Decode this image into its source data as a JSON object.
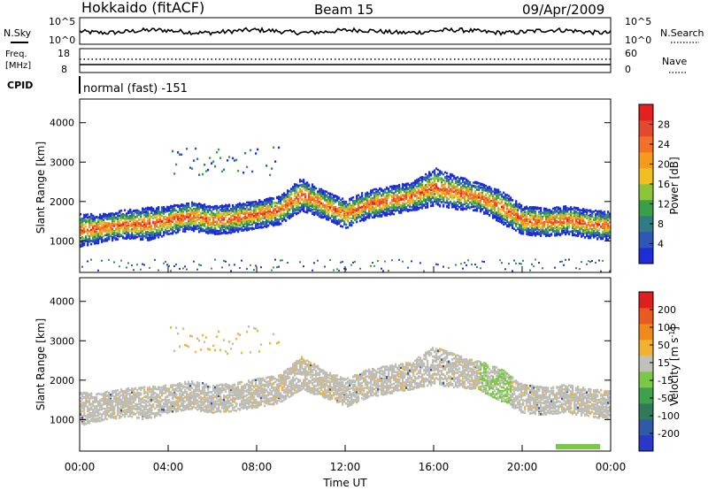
{
  "header": {
    "station": "Hokkaido (fitACF)",
    "beam": "Beam 15",
    "date": "09/Apr/2009"
  },
  "noise_panel": {
    "left_label": "N.Sky",
    "right_label": "N.Search",
    "left_ticks": [
      "10^5",
      "10^0"
    ],
    "right_ticks": [
      "10^5",
      "10^0"
    ]
  },
  "freq_panel": {
    "left_label_1": "Freq.",
    "left_label_2": "[MHz]",
    "right_label": "Nave",
    "left_ticks": [
      "18",
      "8"
    ],
    "right_ticks": [
      "60",
      "0"
    ]
  },
  "cpid_panel": {
    "label": "CPID",
    "text": "normal (fast) -151"
  },
  "colors": {
    "power_scale": [
      "#1f2dd6",
      "#2e57b8",
      "#2f7d82",
      "#3aa048",
      "#8cc43a",
      "#f0c020",
      "#f59a1c",
      "#f2702a",
      "#e4482e",
      "#e6201f"
    ],
    "velocity_scale": [
      "#2b37c8",
      "#2f5aa6",
      "#2f7a59",
      "#3fa14a",
      "#7ac843",
      "#c0c0bb",
      "#f2b231",
      "#ee8a1c",
      "#e85a1f",
      "#df1f1f"
    ],
    "background_scatter": "#bdbdb6"
  },
  "chart_data": [
    {
      "type": "heatmap",
      "name": "power",
      "ylabel": "Slant Range [km]",
      "ylim": [
        200,
        4600
      ],
      "yticks": [
        "1000",
        "2000",
        "3000",
        "4000"
      ],
      "ytick_values": [
        1000,
        2000,
        3000,
        4000
      ],
      "colorbar_label": "Power [dB]",
      "colorbar_ticks": [
        "28",
        "24",
        "20",
        "16",
        "12",
        "8",
        "4"
      ],
      "colorbar_range": [
        0,
        32
      ],
      "echo_band": {
        "time_h": [
          0,
          1,
          2,
          3,
          4,
          5,
          6,
          7,
          8,
          9,
          10,
          11,
          12,
          13,
          14,
          15,
          16,
          17,
          18,
          19,
          20,
          21,
          22,
          23,
          24
        ],
        "center_km": [
          1300,
          1350,
          1450,
          1450,
          1550,
          1650,
          1550,
          1600,
          1700,
          1800,
          2200,
          1950,
          1700,
          1950,
          2050,
          2150,
          2400,
          2250,
          2150,
          1900,
          1550,
          1500,
          1550,
          1450,
          1400
        ],
        "half_width_km": [
          350,
          300,
          300,
          350,
          300,
          300,
          300,
          300,
          300,
          300,
          350,
          300,
          300,
          300,
          300,
          300,
          400,
          350,
          300,
          350,
          300,
          300,
          300,
          300,
          300
        ]
      }
    },
    {
      "type": "heatmap",
      "name": "velocity",
      "ylabel": "Slant Range [km]",
      "xlabel": "Time UT",
      "ylim": [
        200,
        4600
      ],
      "yticks": [
        "1000",
        "2000",
        "3000",
        "4000"
      ],
      "ytick_values": [
        1000,
        2000,
        3000,
        4000
      ],
      "xlim": [
        0,
        24
      ],
      "xticks": [
        "00:00",
        "04:00",
        "08:00",
        "12:00",
        "16:00",
        "20:00",
        "00:00"
      ],
      "xtick_values": [
        0,
        4,
        8,
        12,
        16,
        20,
        24
      ],
      "colorbar_label": "Velocity [m s-1]",
      "colorbar_ticks": [
        "200",
        "100",
        "50",
        "15",
        "-15",
        "-50",
        "-100",
        "-200"
      ]
    }
  ]
}
